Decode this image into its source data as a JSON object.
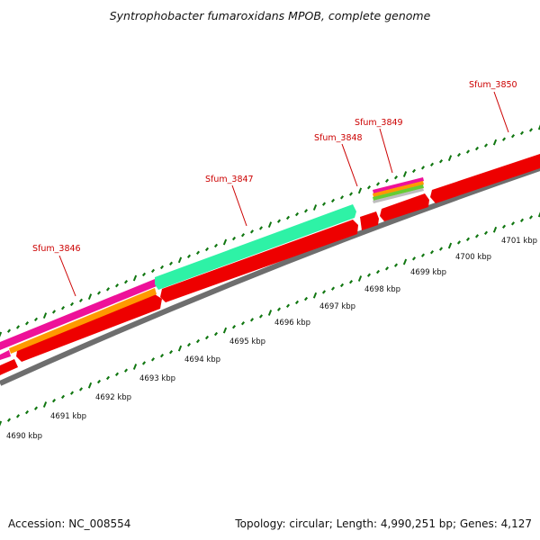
{
  "title": "Syntrophobacter fumaroxidans MPOB, complete genome",
  "footer": {
    "accession": "Accession: NC_008554",
    "summary": "Topology: circular; Length: 4,990,251 bp; Genes: 4,127"
  },
  "colors": {
    "gene_red": "#ff0000",
    "gene_green": "#2ef2a6",
    "gene_magenta": "#ee1199",
    "gene_orange": "#ff9900",
    "backbone": "#888888",
    "tick": "#117711",
    "label": "#cc0000"
  },
  "scale_labels": [
    "4690 kbp",
    "4691 kbp",
    "4692 kbp",
    "4693 kbp",
    "4694 kbp",
    "4695 kbp",
    "4696 kbp",
    "4697 kbp",
    "4698 kbp",
    "4699 kbp",
    "4700 kbp",
    "4701 kbp"
  ],
  "gene_labels": [
    "Sfum_3846",
    "Sfum_3847",
    "Sfum_3848",
    "Sfum_3849",
    "Sfum_3850"
  ]
}
